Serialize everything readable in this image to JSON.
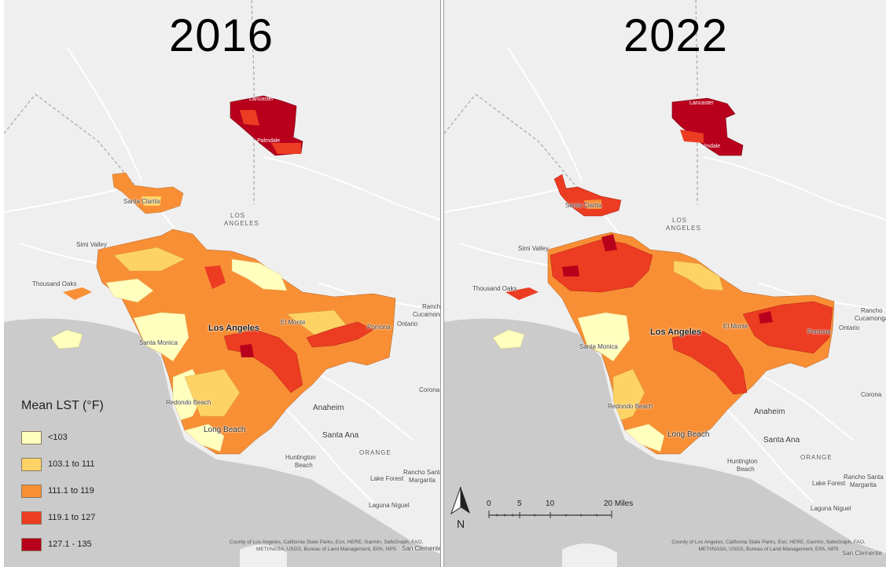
{
  "panels": [
    {
      "year": "2016"
    },
    {
      "year": "2022"
    }
  ],
  "places": {
    "lancaster": "Lancaster",
    "palmdale": "Palmdale",
    "santa_clarita": "Santa Clarita",
    "los_angeles_county_1": "LOS",
    "los_angeles_county_2": "ANGELES",
    "simi_valley": "Simi Valley",
    "thousand_oaks": "Thousand Oaks",
    "los_angeles": "Los Angeles",
    "el_monte": "El Monte",
    "pomona": "Pomona",
    "ontario": "Ontario",
    "rancho_cucamonga_1": "Rancho",
    "rancho_cucamonga_2": "Cucamonga",
    "santa_monica": "Santa Monica",
    "redondo_beach": "Redondo Beach",
    "anaheim": "Anaheim",
    "long_beach": "Long Beach",
    "santa_ana": "Santa Ana",
    "corona": "Corona",
    "huntington_beach_1": "Huntington",
    "huntington_beach_2": "Beach",
    "orange_county": "ORANGE",
    "lake_forest": "Lake Forest",
    "rancho_santa_margarita_1": "Rancho Santa",
    "rancho_santa_margarita_2": "Margarita",
    "laguna_niguel": "Laguna Niguel",
    "san_clemente": "San Clemente"
  },
  "attribution": {
    "line1": "County of Los Angeles, California State Parks, Esri, HERE, Garmin, SafeGraph, FAO,",
    "line2": "METI/NASA, USGS, Bureau of Land Management, EPA, NPS"
  },
  "legend": {
    "title": "Mean LST (°F)",
    "classes": [
      {
        "label": "<103",
        "color": "#ffffbe"
      },
      {
        "label": "103.1 to 111",
        "color": "#fdd366"
      },
      {
        "label": "111.1 to 119",
        "color": "#f98f35"
      },
      {
        "label": "119.1 to 127",
        "color": "#ec3c22"
      },
      {
        "label": "127.1 - 135",
        "color": "#b8001c"
      }
    ]
  },
  "scalebar": {
    "north_label": "N",
    "ticks": [
      "0",
      "5",
      "10",
      "20 Miles"
    ]
  },
  "colors": {
    "land": "#efefef",
    "ocean": "#cbcbcb",
    "road": "#ffffff",
    "boundary": "#9a9a9a"
  }
}
